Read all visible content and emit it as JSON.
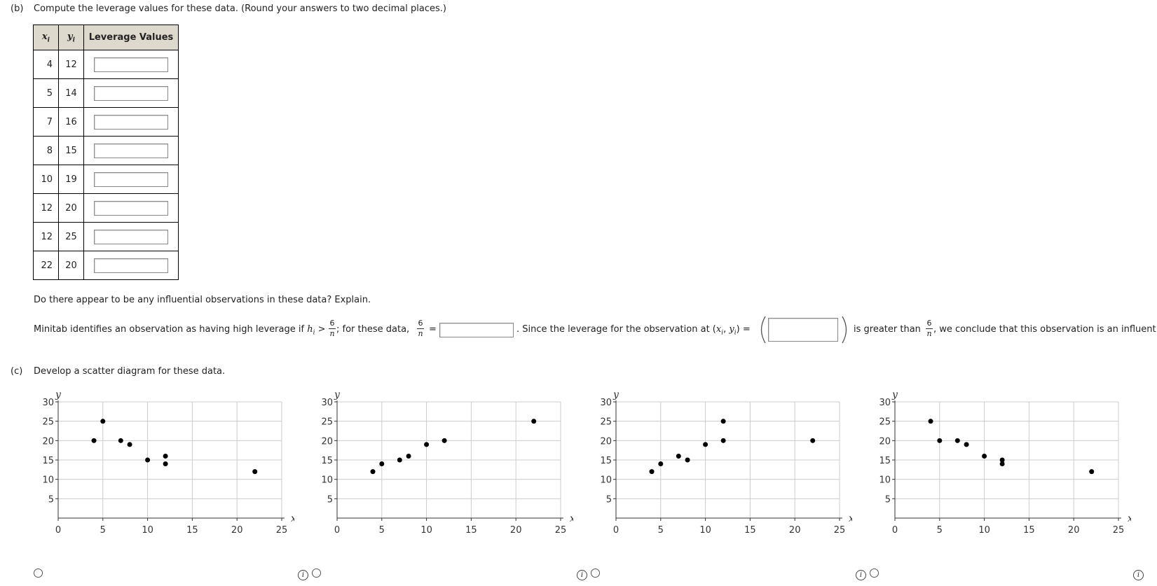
{
  "part_b": {
    "label": "(b)",
    "prompt": "Compute the leverage values for these data. (Round your answers to two decimal places.)",
    "table": {
      "col_x": "x",
      "col_x_sub": "i",
      "col_y": "y",
      "col_y_sub": "i",
      "col_lev": "Leverage Values",
      "rows": [
        {
          "x": "4",
          "y": "12"
        },
        {
          "x": "5",
          "y": "14"
        },
        {
          "x": "7",
          "y": "16"
        },
        {
          "x": "8",
          "y": "15"
        },
        {
          "x": "10",
          "y": "19"
        },
        {
          "x": "12",
          "y": "20"
        },
        {
          "x": "12",
          "y": "25"
        },
        {
          "x": "22",
          "y": "20"
        }
      ]
    },
    "question": "Do there appear to be any influential observations in these data? Explain.",
    "minitab": {
      "t1": "Minitab identifies an observation as having high leverage if ",
      "h": "h",
      "h_sub": "i",
      "gt": " > ",
      "frac_num": "6",
      "frac_den": "n",
      "t2": "; for these data, ",
      "eq": "=",
      "t3": ". Since the leverage for the observation at (",
      "xi": "x",
      "xi_sub": "i",
      "comma": ", ",
      "yi": "y",
      "yi_sub": "i",
      "t4": ") =",
      "t5": "is greater than ",
      "t6": ", we conclude that this observation is an influent"
    }
  },
  "part_c": {
    "label": "(c)",
    "prompt": "Develop a scatter diagram for these data.",
    "options": [
      {
        "radio": "option-1"
      },
      {
        "radio": "option-2"
      },
      {
        "radio": "option-3"
      },
      {
        "radio": "option-4"
      }
    ],
    "info_glyph": "i"
  },
  "chart_data": [
    {
      "type": "scatter",
      "xlabel": "x",
      "ylabel": "y",
      "xlim": [
        0,
        25
      ],
      "ylim": [
        0,
        30
      ],
      "xticks": [
        "0",
        "5",
        "10",
        "15",
        "20",
        "25"
      ],
      "yticks": [
        "5",
        "10",
        "15",
        "20",
        "25",
        "30"
      ],
      "grid": true,
      "points": [
        [
          4,
          20
        ],
        [
          5,
          25
        ],
        [
          7,
          20
        ],
        [
          8,
          19
        ],
        [
          10,
          15
        ],
        [
          12,
          16
        ],
        [
          12,
          14
        ],
        [
          22,
          12
        ]
      ]
    },
    {
      "type": "scatter",
      "xlabel": "x",
      "ylabel": "y",
      "xlim": [
        0,
        25
      ],
      "ylim": [
        0,
        30
      ],
      "xticks": [
        "0",
        "5",
        "10",
        "15",
        "20",
        "25"
      ],
      "yticks": [
        "5",
        "10",
        "15",
        "20",
        "25",
        "30"
      ],
      "grid": true,
      "points": [
        [
          4,
          12
        ],
        [
          5,
          14
        ],
        [
          7,
          15
        ],
        [
          8,
          16
        ],
        [
          10,
          19
        ],
        [
          12,
          20
        ],
        [
          22,
          25
        ]
      ]
    },
    {
      "type": "scatter",
      "xlabel": "x",
      "ylabel": "y",
      "xlim": [
        0,
        25
      ],
      "ylim": [
        0,
        30
      ],
      "xticks": [
        "0",
        "5",
        "10",
        "15",
        "20",
        "25"
      ],
      "yticks": [
        "5",
        "10",
        "15",
        "20",
        "25",
        "30"
      ],
      "grid": true,
      "points": [
        [
          4,
          12
        ],
        [
          5,
          14
        ],
        [
          7,
          16
        ],
        [
          8,
          15
        ],
        [
          10,
          19
        ],
        [
          12,
          20
        ],
        [
          12,
          25
        ],
        [
          22,
          20
        ]
      ]
    },
    {
      "type": "scatter",
      "xlabel": "x",
      "ylabel": "y",
      "xlim": [
        0,
        25
      ],
      "ylim": [
        0,
        30
      ],
      "xticks": [
        "0",
        "5",
        "10",
        "15",
        "20",
        "25"
      ],
      "yticks": [
        "5",
        "10",
        "15",
        "20",
        "25",
        "30"
      ],
      "grid": true,
      "points": [
        [
          4,
          25
        ],
        [
          5,
          20
        ],
        [
          7,
          20
        ],
        [
          8,
          19
        ],
        [
          10,
          16
        ],
        [
          12,
          15
        ],
        [
          12,
          14
        ],
        [
          22,
          12
        ]
      ]
    }
  ]
}
